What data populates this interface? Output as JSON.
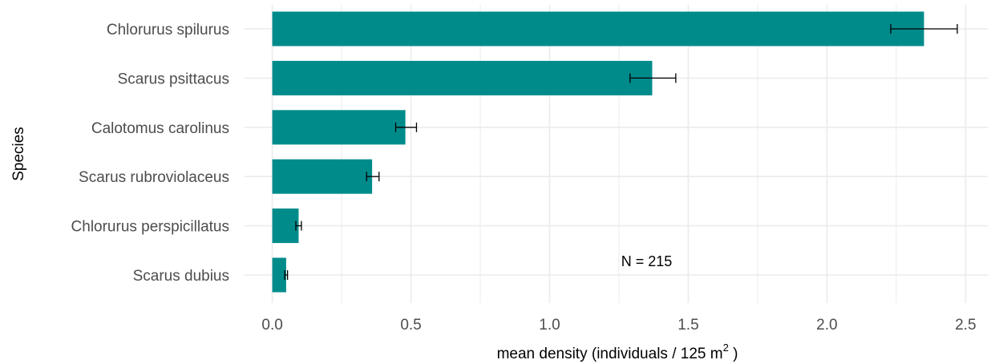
{
  "chart_data": {
    "type": "bar",
    "orientation": "horizontal",
    "categories": [
      "Chlorurus spilurus",
      "Scarus psittacus",
      "Calotomus carolinus",
      "Scarus rubroviolaceus",
      "Chlorurus perspicillatus",
      "Scarus dubius"
    ],
    "values": [
      2.35,
      1.37,
      0.48,
      0.36,
      0.095,
      0.05
    ],
    "error_low": [
      2.23,
      1.29,
      0.445,
      0.34,
      0.085,
      0.045
    ],
    "error_high": [
      2.47,
      1.455,
      0.52,
      0.385,
      0.105,
      0.055
    ],
    "xlim": [
      -0.1,
      2.58
    ],
    "x_ticks": [
      0.0,
      0.5,
      1.0,
      1.5,
      2.0,
      2.5
    ],
    "x_tick_labels": [
      "0.0",
      "0.5",
      "1.0",
      "1.5",
      "2.0",
      "2.5"
    ],
    "xlabel_main": "mean density (individuals / 125 m",
    "xlabel_sup": "2",
    "xlabel_end": " )",
    "ylabel": "Species",
    "annotation": "N = 215",
    "annotation_x": 1.35,
    "grid": true,
    "bar_color": "#008b8b",
    "grid_color": "#ebebeb"
  }
}
